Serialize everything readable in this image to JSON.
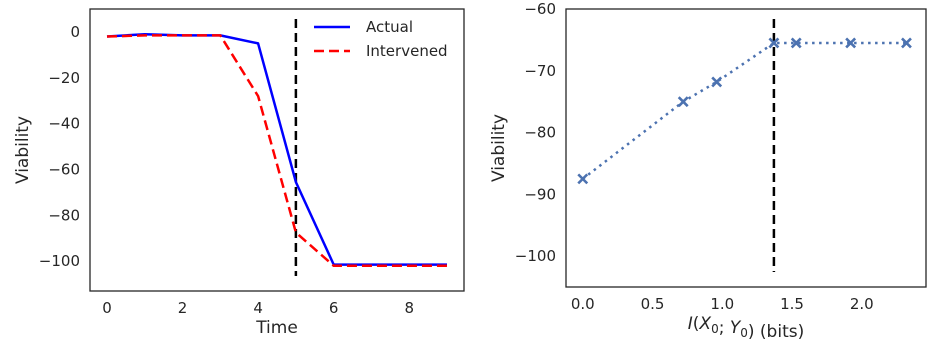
{
  "chart_data": [
    {
      "type": "line",
      "xlabel": "Time",
      "ylabel": "Viability",
      "xlim": [
        -0.45,
        9.45
      ],
      "ylim": [
        -113,
        10
      ],
      "xticks": [
        0,
        2,
        4,
        6,
        8
      ],
      "yticks": [
        0,
        -20,
        -40,
        -60,
        -80,
        -100
      ],
      "xtick_labels": [
        "0",
        "2",
        "4",
        "6",
        "8"
      ],
      "ytick_labels": [
        "0",
        "−20",
        "−40",
        "−60",
        "−80",
        "−100"
      ],
      "legend_position": "top-right",
      "grid": false,
      "series": [
        {
          "name": "Actual",
          "style": "solid",
          "color": "#0000ff",
          "x": [
            0,
            1,
            2,
            3,
            4,
            5,
            6,
            7,
            8,
            9
          ],
          "y": [
            -2,
            -1,
            -1.5,
            -1.5,
            -5,
            -65.5,
            -101.5,
            -101.5,
            -101.5,
            -101.5
          ]
        },
        {
          "name": "Intervened",
          "style": "dashed",
          "color": "#ff0000",
          "x": [
            0,
            1,
            2,
            3,
            4,
            5,
            6,
            7,
            8,
            9
          ],
          "y": [
            -2,
            -1.5,
            -1.5,
            -1.5,
            -28,
            -87.5,
            -102,
            -102,
            -102,
            -102
          ]
        }
      ],
      "vline": {
        "x": 5,
        "color": "#000000",
        "style": "dashed"
      }
    },
    {
      "type": "line",
      "xlabel": "I(X₀; Y₀) (bits)",
      "ylabel": "Viability",
      "xlim": [
        -0.12,
        2.46
      ],
      "ylim": [
        -105,
        -60
      ],
      "xticks": [
        0.0,
        0.5,
        1.0,
        1.5,
        2.0
      ],
      "yticks": [
        -60,
        -70,
        -80,
        -90,
        -100
      ],
      "xtick_labels": [
        "0.0",
        "0.5",
        "1.0",
        "1.5",
        "2.0"
      ],
      "ytick_labels": [
        "−60",
        "−70",
        "−80",
        "−90",
        "−100"
      ],
      "grid": false,
      "series": [
        {
          "style": "dotted",
          "marker": "x",
          "color": "#4c72b0",
          "x": [
            0.0,
            0.72,
            0.96,
            1.37,
            1.53,
            1.92,
            2.32
          ],
          "y": [
            -87.5,
            -75,
            -71.8,
            -65.5,
            -65.5,
            -65.5,
            -65.5
          ]
        }
      ],
      "vline": {
        "x": 1.37,
        "color": "#000000",
        "style": "dashed"
      }
    }
  ]
}
